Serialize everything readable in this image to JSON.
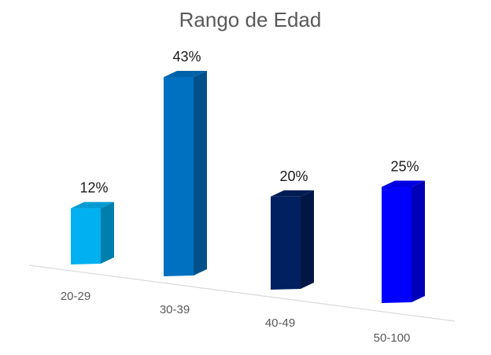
{
  "chart_data": {
    "type": "bar",
    "title": "Rango de Edad",
    "categories": [
      "20-29",
      "30-39",
      "40-49",
      "50-100"
    ],
    "values": [
      12,
      43,
      20,
      25
    ],
    "data_labels": [
      "12%",
      "43%",
      "20%",
      "25%"
    ],
    "unit": "%",
    "colors": [
      "#00B0F0",
      "#0070C0",
      "#002060",
      "#0000FF"
    ],
    "grid": false,
    "legend": "none",
    "style": "3d-perspective"
  }
}
